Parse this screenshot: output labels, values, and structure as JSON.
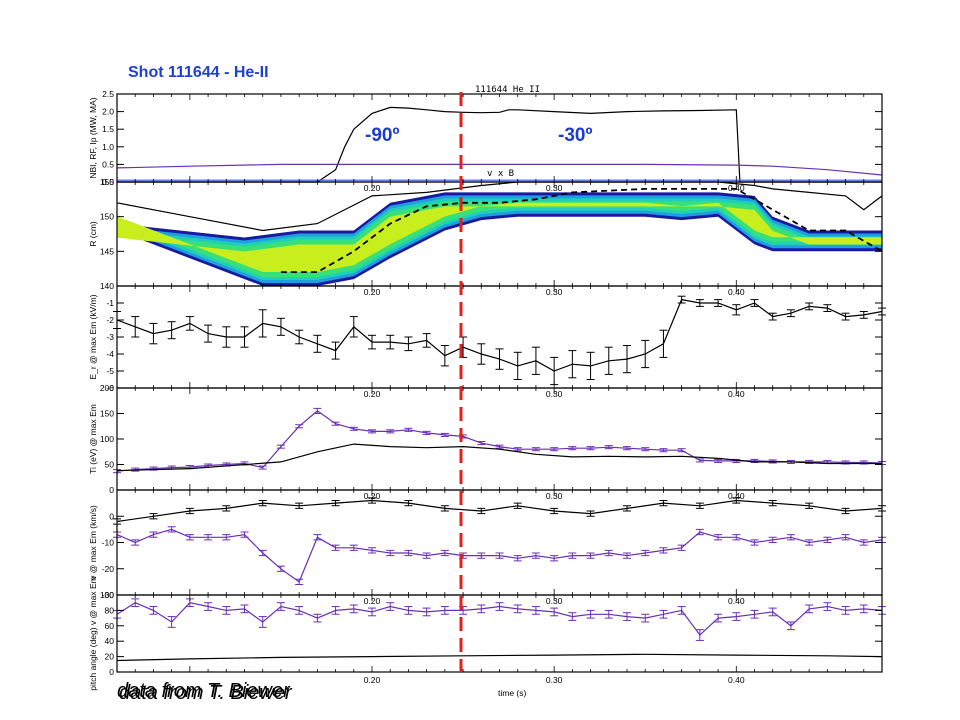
{
  "title": "Shot 111644 - He-II",
  "plot_header": "111644 He II",
  "annotations": {
    "left_angle": "-90º",
    "right_angle": "-30º",
    "vxb": "v x B"
  },
  "source": "data from T. Biewer",
  "xlabel": "time (s)",
  "time_ticks": [
    "0.20",
    "0.30",
    "0.40"
  ],
  "colors": {
    "black": "#000000",
    "purple": "#6b2fb6",
    "blue": "#2b5bd8",
    "dashed_line": "#e0201b",
    "title": "#1f3fd6"
  },
  "chart_data": [
    {
      "type": "line",
      "ylabel": "NBI, RF, Ip (MW, MA)",
      "ylim": [
        0,
        2.5
      ],
      "yticks": [
        "0.0",
        "0.5",
        "1.0",
        "1.5",
        "2.0",
        "2.5"
      ],
      "series": [
        {
          "color": "#000000",
          "x": [
            0.06,
            0.17,
            0.18,
            0.185,
            0.19,
            0.2,
            0.21,
            0.22,
            0.23,
            0.24,
            0.25,
            0.26,
            0.27,
            0.275,
            0.28,
            0.3,
            0.32,
            0.34,
            0.36,
            0.38,
            0.4,
            0.401,
            0.402,
            0.41,
            0.48
          ],
          "y": [
            0,
            0,
            0.35,
            1.0,
            1.5,
            1.95,
            2.12,
            2.1,
            2.05,
            2.0,
            1.98,
            1.97,
            1.98,
            2.05,
            2.05,
            2.0,
            1.95,
            2.0,
            2.02,
            2.03,
            2.05,
            1.05,
            0,
            0,
            0
          ]
        },
        {
          "color": "#6b2fb6",
          "x": [
            0.06,
            0.1,
            0.15,
            0.2,
            0.25,
            0.3,
            0.35,
            0.4,
            0.42,
            0.45,
            0.48
          ],
          "y": [
            0.4,
            0.45,
            0.5,
            0.5,
            0.5,
            0.5,
            0.5,
            0.48,
            0.45,
            0.35,
            0.2
          ]
        },
        {
          "color": "#2b5bd8",
          "x": [
            0.06,
            0.48
          ],
          "y": [
            0.05,
            0.05
          ]
        }
      ]
    },
    {
      "type": "heatmap",
      "ylabel": "R (cm)",
      "ylim": [
        140,
        155
      ],
      "yticks": [
        "140",
        "145",
        "150",
        "155"
      ],
      "band_lower": {
        "x": [
          0.06,
          0.14,
          0.17,
          0.19,
          0.21,
          0.24,
          0.26,
          0.28,
          0.3,
          0.31,
          0.33,
          0.35,
          0.37,
          0.39,
          0.41,
          0.42,
          0.43,
          0.44,
          0.46,
          0.48
        ],
        "y": [
          148,
          140,
          140,
          141,
          144,
          148,
          149.5,
          150,
          150,
          150,
          150,
          150,
          149.5,
          150,
          146,
          145,
          145,
          145,
          145,
          145
        ]
      },
      "band_upper": {
        "x": [
          0.06,
          0.13,
          0.16,
          0.19,
          0.21,
          0.24,
          0.26,
          0.28,
          0.3,
          0.33,
          0.36,
          0.39,
          0.41,
          0.42,
          0.44,
          0.46,
          0.48
        ],
        "y": [
          149,
          147,
          148,
          148,
          152,
          153.5,
          153.5,
          153.5,
          153.5,
          153.5,
          153.5,
          153.5,
          153,
          150,
          148,
          148,
          148
        ]
      },
      "series": [
        {
          "color": "#000000",
          "style": "solid",
          "x": [
            0.06,
            0.1,
            0.14,
            0.17,
            0.2,
            0.23,
            0.26,
            0.28,
            0.3,
            0.33,
            0.36,
            0.39,
            0.41,
            0.42,
            0.44,
            0.46,
            0.47,
            0.48
          ],
          "y": [
            152,
            150,
            148,
            149,
            153,
            153.5,
            154.5,
            155,
            155,
            155,
            155,
            155,
            154.5,
            154,
            153.5,
            153,
            151,
            153
          ]
        },
        {
          "color": "#000000",
          "style": "dashed",
          "x": [
            0.15,
            0.17,
            0.19,
            0.21,
            0.23,
            0.25,
            0.27,
            0.29,
            0.31,
            0.35,
            0.38,
            0.4,
            0.42,
            0.44,
            0.46,
            0.48
          ],
          "y": [
            142,
            142,
            145,
            149,
            151.5,
            152,
            152,
            152.5,
            153.5,
            154,
            154,
            154,
            151,
            148,
            148,
            145
          ]
        }
      ]
    },
    {
      "type": "line",
      "ylabel": "E_r @ max Em (kV/m)",
      "ylim": [
        -6,
        0
      ],
      "yticks": [
        "-6",
        "-5",
        "-4",
        "-3",
        "-2",
        "-1"
      ],
      "series": [
        {
          "color": "#000000",
          "error_bars": true,
          "x": [
            0.06,
            0.07,
            0.08,
            0.09,
            0.1,
            0.11,
            0.12,
            0.13,
            0.14,
            0.15,
            0.16,
            0.17,
            0.18,
            0.19,
            0.2,
            0.21,
            0.22,
            0.23,
            0.24,
            0.25,
            0.26,
            0.27,
            0.28,
            0.29,
            0.3,
            0.31,
            0.32,
            0.33,
            0.34,
            0.35,
            0.36,
            0.37,
            0.38,
            0.39,
            0.4,
            0.41,
            0.42,
            0.43,
            0.44,
            0.45,
            0.46,
            0.47,
            0.48
          ],
          "y": [
            -2.0,
            -2.4,
            -2.8,
            -2.6,
            -2.2,
            -2.8,
            -3.0,
            -3.0,
            -2.2,
            -2.4,
            -3.0,
            -3.4,
            -3.8,
            -2.4,
            -3.3,
            -3.3,
            -3.4,
            -3.2,
            -4.1,
            -3.6,
            -4.0,
            -4.3,
            -4.7,
            -4.4,
            -5.0,
            -4.6,
            -4.7,
            -4.4,
            -4.3,
            -4.0,
            -3.4,
            -0.8,
            -1.0,
            -1.0,
            -1.4,
            -1.0,
            -1.8,
            -1.6,
            -1.2,
            -1.3,
            -1.8,
            -1.7,
            -1.5
          ],
          "err": [
            0.5,
            0.6,
            0.6,
            0.5,
            0.4,
            0.5,
            0.6,
            0.6,
            0.8,
            0.5,
            0.4,
            0.5,
            0.5,
            0.6,
            0.4,
            0.4,
            0.4,
            0.4,
            0.6,
            0.6,
            0.6,
            0.6,
            0.8,
            0.8,
            0.8,
            0.8,
            0.8,
            0.8,
            0.8,
            0.8,
            0.8,
            0.2,
            0.2,
            0.2,
            0.3,
            0.2,
            0.2,
            0.2,
            0.2,
            0.2,
            0.2,
            0.2,
            0.2
          ]
        }
      ]
    },
    {
      "type": "line",
      "ylabel": "Ti (eV) @ max Em",
      "ylim": [
        0,
        200
      ],
      "yticks": [
        "0",
        "50",
        "100",
        "150",
        "200"
      ],
      "series": [
        {
          "color": "#6b2fb6",
          "error_bars": true,
          "x": [
            0.06,
            0.07,
            0.08,
            0.09,
            0.1,
            0.11,
            0.12,
            0.13,
            0.14,
            0.15,
            0.16,
            0.17,
            0.18,
            0.19,
            0.2,
            0.21,
            0.22,
            0.23,
            0.24,
            0.25,
            0.26,
            0.27,
            0.28,
            0.29,
            0.3,
            0.31,
            0.32,
            0.33,
            0.34,
            0.35,
            0.36,
            0.37,
            0.38,
            0.39,
            0.4,
            0.41,
            0.42,
            0.43,
            0.44,
            0.45,
            0.46,
            0.47,
            0.48
          ],
          "y": [
            37,
            40,
            42,
            44,
            45,
            48,
            50,
            52,
            44,
            85,
            125,
            155,
            130,
            120,
            115,
            115,
            118,
            112,
            108,
            105,
            92,
            85,
            80,
            80,
            80,
            82,
            82,
            84,
            82,
            80,
            78,
            78,
            58,
            57,
            57,
            57,
            56,
            55,
            55,
            55,
            54,
            54,
            53
          ],
          "err": [
            3,
            3,
            3,
            3,
            3,
            3,
            3,
            3,
            3,
            3,
            3,
            5,
            3,
            3,
            3,
            3,
            3,
            3,
            3,
            3,
            3,
            3,
            3,
            3,
            3,
            3,
            3,
            3,
            3,
            3,
            3,
            3,
            3,
            3,
            3,
            3,
            3,
            3,
            3,
            3,
            3,
            3,
            3
          ]
        },
        {
          "color": "#000000",
          "x": [
            0.06,
            0.1,
            0.15,
            0.17,
            0.19,
            0.21,
            0.23,
            0.25,
            0.27,
            0.29,
            0.31,
            0.33,
            0.35,
            0.37,
            0.39,
            0.41,
            0.43,
            0.45,
            0.48
          ],
          "y": [
            38,
            42,
            55,
            75,
            90,
            85,
            83,
            85,
            80,
            70,
            65,
            66,
            65,
            66,
            62,
            55,
            55,
            52,
            52
          ]
        }
      ]
    },
    {
      "type": "line",
      "ylabel": "v @ max Em (km/s)",
      "ylim": [
        -30,
        10
      ],
      "yticks": [
        "-30",
        "-20",
        "-10",
        "0"
      ],
      "series": [
        {
          "color": "#000000",
          "error_bars": true,
          "x": [
            0.06,
            0.08,
            0.1,
            0.12,
            0.14,
            0.16,
            0.18,
            0.2,
            0.22,
            0.24,
            0.26,
            0.28,
            0.3,
            0.32,
            0.34,
            0.36,
            0.38,
            0.4,
            0.42,
            0.44,
            0.46,
            0.48
          ],
          "y": [
            -2,
            0,
            2,
            3,
            5,
            4,
            5,
            6,
            5,
            3,
            2,
            4,
            2,
            1,
            3,
            5,
            4,
            6,
            5,
            4,
            2,
            3
          ],
          "err": [
            1,
            1,
            1,
            1,
            1,
            1,
            1,
            1,
            1,
            1,
            1,
            1,
            1,
            1,
            1,
            1,
            1,
            1,
            1,
            1,
            1,
            1
          ]
        },
        {
          "color": "#6b2fb6",
          "error_bars": true,
          "x": [
            0.06,
            0.07,
            0.08,
            0.09,
            0.1,
            0.11,
            0.12,
            0.13,
            0.14,
            0.15,
            0.16,
            0.17,
            0.18,
            0.19,
            0.2,
            0.21,
            0.22,
            0.23,
            0.24,
            0.25,
            0.26,
            0.27,
            0.28,
            0.29,
            0.3,
            0.31,
            0.32,
            0.33,
            0.34,
            0.35,
            0.36,
            0.37,
            0.38,
            0.39,
            0.4,
            0.41,
            0.42,
            0.43,
            0.44,
            0.45,
            0.46,
            0.47,
            0.48
          ],
          "y": [
            -7,
            -10,
            -7,
            -5,
            -8,
            -8,
            -8,
            -7,
            -14,
            -20,
            -25,
            -8,
            -12,
            -12,
            -13,
            -14,
            -14,
            -15,
            -14,
            -15,
            -15,
            -15,
            -16,
            -15,
            -16,
            -15,
            -15,
            -14,
            -15,
            -14,
            -13,
            -12,
            -6,
            -8,
            -8,
            -10,
            -9,
            -8,
            -10,
            -9,
            -8,
            -10,
            -9
          ],
          "err": [
            1,
            1,
            1,
            1,
            1,
            1,
            1,
            1,
            1,
            1,
            1,
            1,
            1,
            1,
            1,
            1,
            1,
            1,
            1,
            1,
            1,
            1,
            1,
            1,
            1,
            1,
            1,
            1,
            1,
            1,
            1,
            1,
            1,
            1,
            1,
            1,
            1,
            1,
            1,
            1,
            1,
            1,
            1
          ]
        }
      ]
    },
    {
      "type": "line",
      "ylabel": "pitch angle (deg) v @ max Em",
      "ylim": [
        0,
        100
      ],
      "yticks": [
        "0",
        "20",
        "40",
        "60",
        "80",
        "100"
      ],
      "series": [
        {
          "color": "#6b2fb6",
          "error_bars": true,
          "x": [
            0.06,
            0.07,
            0.08,
            0.09,
            0.1,
            0.11,
            0.12,
            0.13,
            0.14,
            0.15,
            0.16,
            0.17,
            0.18,
            0.19,
            0.2,
            0.21,
            0.22,
            0.23,
            0.24,
            0.25,
            0.26,
            0.27,
            0.28,
            0.29,
            0.3,
            0.31,
            0.32,
            0.33,
            0.34,
            0.35,
            0.36,
            0.37,
            0.38,
            0.39,
            0.4,
            0.41,
            0.42,
            0.43,
            0.44,
            0.45,
            0.46,
            0.47,
            0.48
          ],
          "y": [
            75,
            90,
            80,
            65,
            90,
            85,
            80,
            82,
            65,
            85,
            80,
            70,
            80,
            82,
            78,
            85,
            80,
            78,
            80,
            80,
            82,
            85,
            82,
            80,
            78,
            72,
            75,
            75,
            72,
            70,
            75,
            80,
            48,
            70,
            72,
            75,
            78,
            60,
            82,
            85,
            80,
            82,
            80
          ],
          "err": [
            5,
            5,
            5,
            7,
            5,
            5,
            5,
            5,
            7,
            5,
            5,
            5,
            5,
            5,
            5,
            5,
            5,
            5,
            5,
            5,
            5,
            5,
            5,
            5,
            5,
            5,
            5,
            5,
            5,
            5,
            5,
            5,
            7,
            5,
            5,
            5,
            5,
            5,
            5,
            5,
            5,
            5,
            5
          ]
        },
        {
          "color": "#000000",
          "x": [
            0.06,
            0.1,
            0.15,
            0.2,
            0.25,
            0.3,
            0.35,
            0.4,
            0.45,
            0.48
          ],
          "y": [
            15,
            17,
            19,
            20,
            21,
            22,
            23,
            22,
            21,
            20
          ]
        }
      ]
    }
  ]
}
